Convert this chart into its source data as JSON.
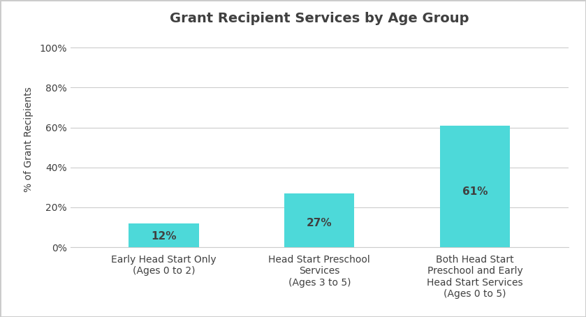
{
  "title": "Grant Recipient Services by Age Group",
  "categories": [
    "Early Head Start Only\n(Ages 0 to 2)",
    "Head Start Preschool\nServices\n(Ages 3 to 5)",
    "Both Head Start\nPreschool and Early\nHead Start Services\n(Ages 0 to 5)"
  ],
  "values": [
    12,
    27,
    61
  ],
  "bar_color": "#4DD9D9",
  "bar_labels": [
    "12%",
    "27%",
    "61%"
  ],
  "ylabel": "% of Grant Recipients",
  "yticks": [
    0,
    20,
    40,
    60,
    80,
    100
  ],
  "ytick_labels": [
    "0%",
    "20%",
    "40%",
    "60%",
    "80%",
    "100%"
  ],
  "ylim": [
    0,
    108
  ],
  "title_fontsize": 14,
  "label_fontsize": 10,
  "tick_fontsize": 10,
  "bar_label_fontsize": 11,
  "background_color": "#ffffff",
  "grid_color": "#cccccc",
  "text_color": "#404040",
  "border_color": "#cccccc",
  "fig_border_color": "#cccccc"
}
